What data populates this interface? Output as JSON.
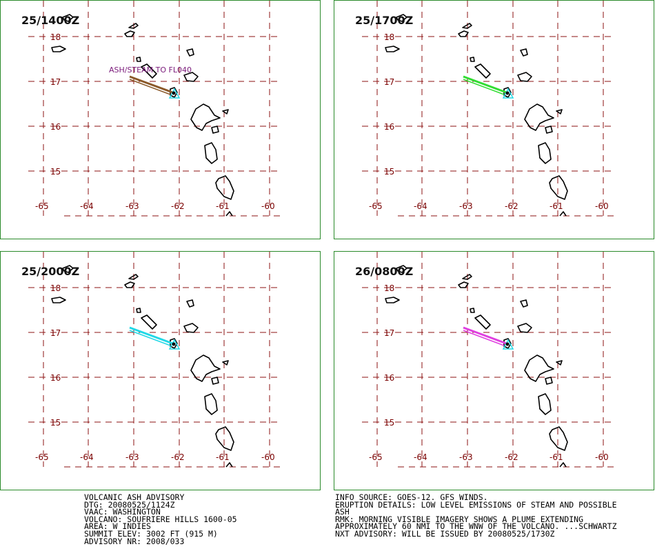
{
  "panels": [
    {
      "time_label": "25/1400Z",
      "plume_color": "#8b5a2b",
      "label": "ASH/STEAM TO FL040"
    },
    {
      "time_label": "25/1700Z",
      "plume_color": "#33dd33",
      "label": ""
    },
    {
      "time_label": "25/2000Z",
      "plume_color": "#22d8e6",
      "label": ""
    },
    {
      "time_label": "26/0800Z",
      "plume_color": "#e040e0",
      "label": ""
    }
  ],
  "map": {
    "lon_labels": [
      "-65",
      "-64",
      "-63",
      "-62",
      "-61",
      "-60"
    ],
    "lat_labels": [
      "18",
      "17",
      "16",
      "15"
    ],
    "volcano_marker_color": "#22d8e6"
  },
  "advisory": {
    "left": [
      "VOLCANIC ASH ADVISORY",
      "DTG: 20080525/1124Z",
      "VAAC: WASHINGTON",
      "VOLCANO: SOUFRIERE HILLS 1600-05",
      "AREA: W_INDIES",
      "SUMMIT ELEV: 3002 FT (915 M)",
      "ADVISORY NR: 2008/033"
    ],
    "right": [
      "INFO SOURCE: GOES-12. GFS WINDS.",
      "ERUPTION DETAILS: LOW LEVEL EMISSIONS OF STEAM AND POSSIBLE",
      "ASH",
      "RMK: MORNING VISIBLE IMAGERY SHOWS A PLUME EXTENDING",
      "APPROXIMATELY 60 NMI TO THE WNW OF THE VOLCANO. ...SCHWARTZ",
      "NXT ADVISORY: WILL BE ISSUED BY 20080525/1730Z"
    ]
  }
}
